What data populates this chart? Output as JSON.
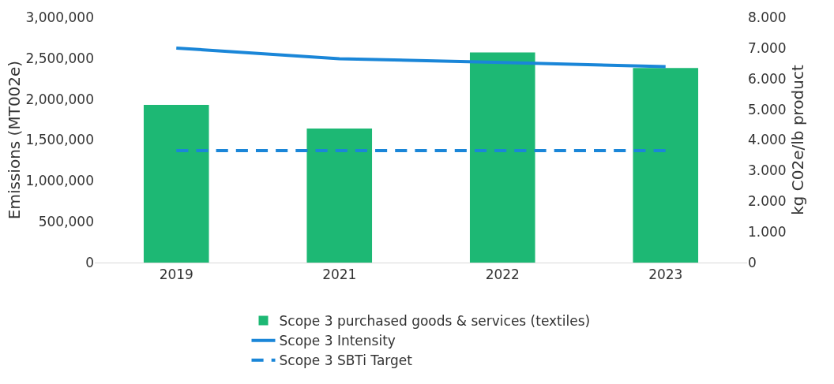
{
  "chart_data": {
    "type": "bar",
    "categories": [
      "2019",
      "2021",
      "2022",
      "2023"
    ],
    "ylabel": "Emissions (MT002e)",
    "y2label": "kg C02e/lb product",
    "series": [
      {
        "name": "Scope 3 purchased goods & services (textiles)",
        "color": "#1db874",
        "values": [
          1930000,
          1640000,
          2570000,
          2380000
        ]
      },
      {
        "name": "Scope 3 Intensity",
        "type": "line",
        "axis": "y2",
        "color": "#1a86d8",
        "line_style": "solid",
        "values": [
          7.0,
          6.65,
          6.53,
          6.39
        ]
      },
      {
        "name": "Scope 3 SBTi Target",
        "type": "line",
        "axis": "y2",
        "color": "#1a86d8",
        "line_style": "dashed",
        "values": [
          3.65,
          3.65,
          3.65,
          3.65
        ]
      }
    ],
    "ylim": [
      0,
      3000000
    ],
    "yticks": [
      {
        "value": 0,
        "label": "0"
      },
      {
        "value": 500000,
        "label": "500,000"
      },
      {
        "value": 1000000,
        "label": "1,000,000"
      },
      {
        "value": 1500000,
        "label": "1,500,000"
      },
      {
        "value": 2000000,
        "label": "2,000,000"
      },
      {
        "value": 2500000,
        "label": "2,500,000"
      },
      {
        "value": 3000000,
        "label": "3,000,000"
      }
    ],
    "y2lim": [
      0,
      8
    ],
    "y2ticks": [
      {
        "value": 0,
        "label": "0"
      },
      {
        "value": 1,
        "label": "1.000"
      },
      {
        "value": 2,
        "label": "2.000"
      },
      {
        "value": 3,
        "label": "3.000"
      },
      {
        "value": 4,
        "label": "4.000"
      },
      {
        "value": 5,
        "label": "5.000"
      },
      {
        "value": 6,
        "label": "6.000"
      },
      {
        "value": 7,
        "label": "7.000"
      },
      {
        "value": 8,
        "label": "8.000"
      }
    ],
    "grid": false,
    "legend": "bottom",
    "marker": "none"
  }
}
